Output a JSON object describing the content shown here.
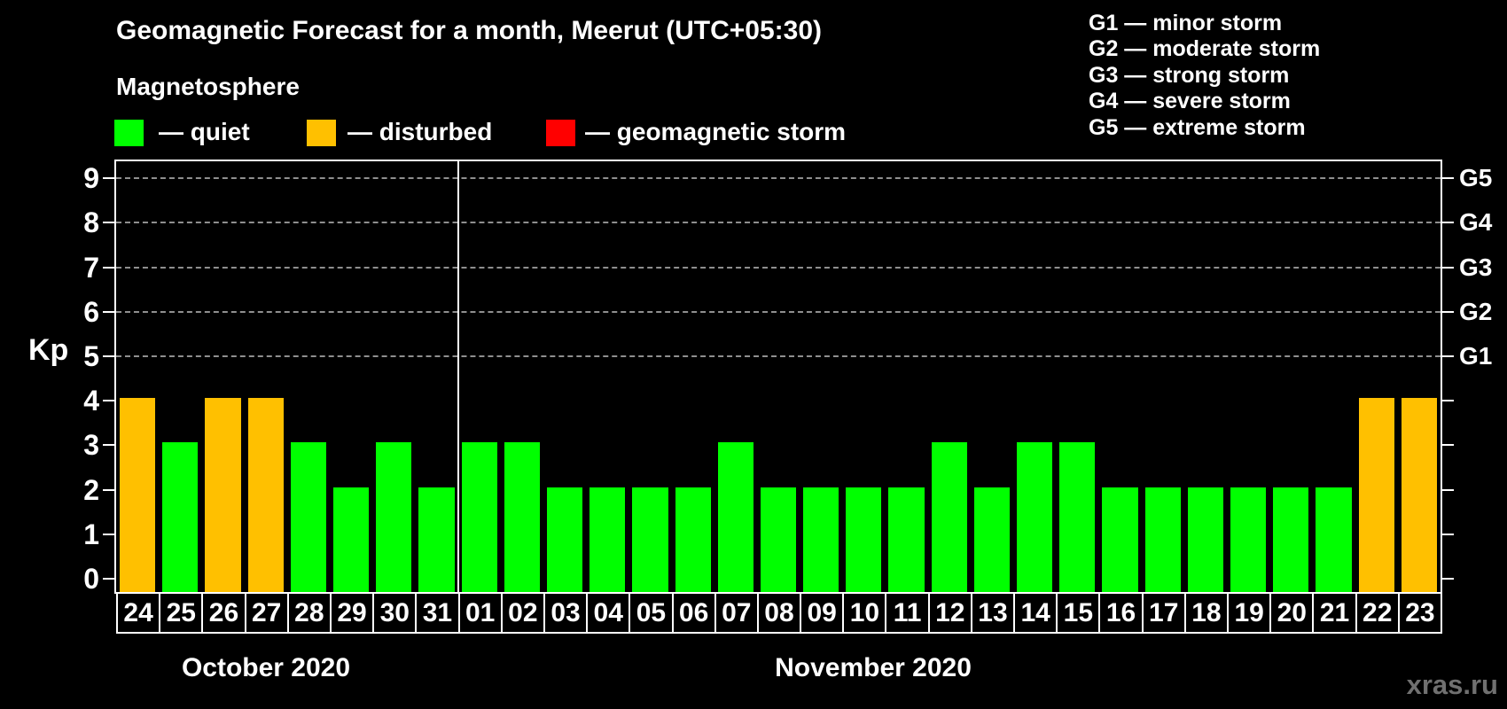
{
  "header": {
    "title": "Geomagnetic Forecast for a month, Meerut (UTC+05:30)",
    "subtitle": "Magnetosphere"
  },
  "legend": {
    "items": [
      {
        "status": "quiet",
        "label": "— quiet"
      },
      {
        "status": "disturbed",
        "label": "— disturbed"
      },
      {
        "status": "storm",
        "label": "— geomagnetic storm"
      }
    ]
  },
  "g_legend": {
    "lines": [
      "G1 — minor storm",
      "G2 — moderate storm",
      "G3 — strong storm",
      "G4 — severe storm",
      "G5 — extreme storm"
    ]
  },
  "watermark": "xras.ru",
  "chart_data": {
    "type": "bar",
    "title": "Geomagnetic Forecast for a month, Meerut (UTC+05:30)",
    "ylabel": "Kp",
    "ylim": [
      0,
      9.4
    ],
    "y_ticks": [
      0,
      1,
      2,
      3,
      4,
      5,
      6,
      7,
      8,
      9
    ],
    "gridlines_at_kp": [
      5,
      6,
      7,
      8,
      9
    ],
    "grid": "dashed-horizontal-only",
    "right_axis_labels": [
      {
        "label": "G1",
        "kp": 5
      },
      {
        "label": "G2",
        "kp": 6
      },
      {
        "label": "G3",
        "kp": 7
      },
      {
        "label": "G4",
        "kp": 8
      },
      {
        "label": "G5",
        "kp": 9
      }
    ],
    "status_colors": {
      "quiet": "#00ff00",
      "disturbed": "#ffc000",
      "storm": "#ff0000"
    },
    "months": [
      {
        "label": "October 2020",
        "points": [
          {
            "day": "24",
            "kp": 4,
            "status": "disturbed"
          },
          {
            "day": "25",
            "kp": 3,
            "status": "quiet"
          },
          {
            "day": "26",
            "kp": 4,
            "status": "disturbed"
          },
          {
            "day": "27",
            "kp": 4,
            "status": "disturbed"
          },
          {
            "day": "28",
            "kp": 3,
            "status": "quiet"
          },
          {
            "day": "29",
            "kp": 2,
            "status": "quiet"
          },
          {
            "day": "30",
            "kp": 3,
            "status": "quiet"
          },
          {
            "day": "31",
            "kp": 2,
            "status": "quiet"
          }
        ]
      },
      {
        "label": "November 2020",
        "points": [
          {
            "day": "01",
            "kp": 3,
            "status": "quiet"
          },
          {
            "day": "02",
            "kp": 3,
            "status": "quiet"
          },
          {
            "day": "03",
            "kp": 2,
            "status": "quiet"
          },
          {
            "day": "04",
            "kp": 2,
            "status": "quiet"
          },
          {
            "day": "05",
            "kp": 2,
            "status": "quiet"
          },
          {
            "day": "06",
            "kp": 2,
            "status": "quiet"
          },
          {
            "day": "07",
            "kp": 3,
            "status": "quiet"
          },
          {
            "day": "08",
            "kp": 2,
            "status": "quiet"
          },
          {
            "day": "09",
            "kp": 2,
            "status": "quiet"
          },
          {
            "day": "10",
            "kp": 2,
            "status": "quiet"
          },
          {
            "day": "11",
            "kp": 2,
            "status": "quiet"
          },
          {
            "day": "12",
            "kp": 3,
            "status": "quiet"
          },
          {
            "day": "13",
            "kp": 2,
            "status": "quiet"
          },
          {
            "day": "14",
            "kp": 3,
            "status": "quiet"
          },
          {
            "day": "15",
            "kp": 3,
            "status": "quiet"
          },
          {
            "day": "16",
            "kp": 2,
            "status": "quiet"
          },
          {
            "day": "17",
            "kp": 2,
            "status": "quiet"
          },
          {
            "day": "18",
            "kp": 2,
            "status": "quiet"
          },
          {
            "day": "19",
            "kp": 2,
            "status": "quiet"
          },
          {
            "day": "20",
            "kp": 2,
            "status": "quiet"
          },
          {
            "day": "21",
            "kp": 2,
            "status": "quiet"
          },
          {
            "day": "22",
            "kp": 4,
            "status": "disturbed"
          },
          {
            "day": "23",
            "kp": 4,
            "status": "disturbed"
          }
        ]
      }
    ]
  }
}
